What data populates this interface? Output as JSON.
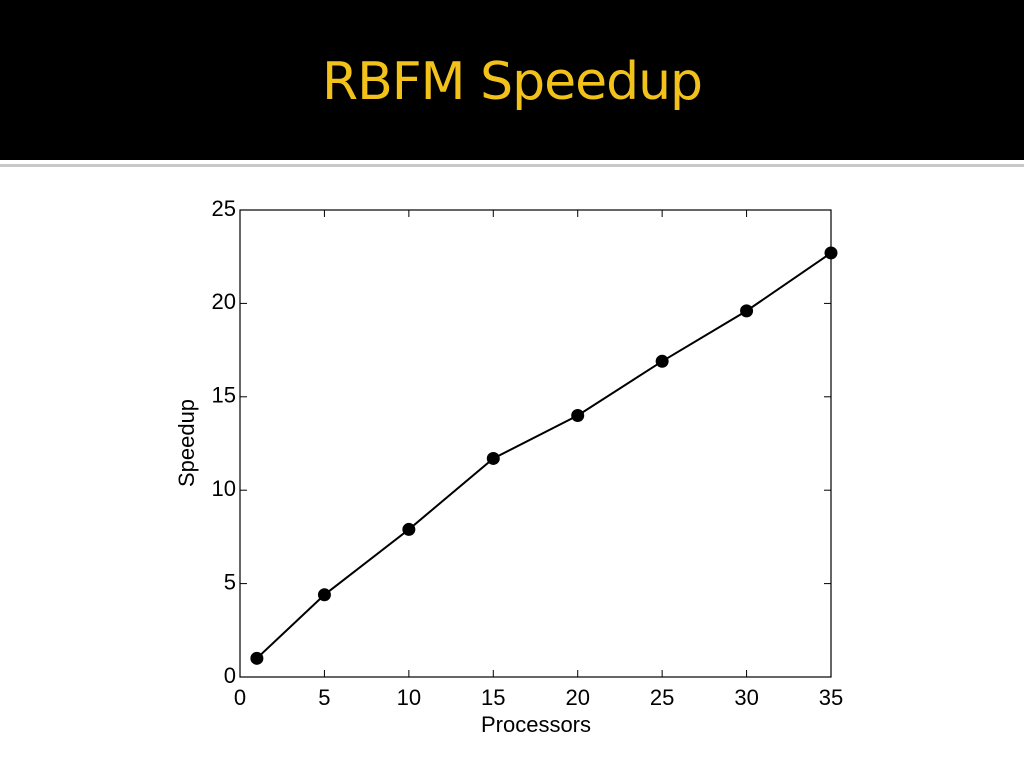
{
  "chart_data": {
    "type": "line",
    "title": "RBFM Speedup",
    "x_label": "Processors",
    "y_label": "Speedup",
    "x": [
      1,
      5,
      10,
      15,
      20,
      25,
      30,
      35
    ],
    "series": [
      {
        "name": "Speedup",
        "color": "#000000",
        "values": [
          1,
          4.4,
          7.9,
          11.7,
          14,
          16.9,
          19.6,
          22.7
        ]
      }
    ],
    "xlim": [
      0,
      35
    ],
    "xticks": [
      0,
      5,
      10,
      15,
      20,
      25,
      30,
      35
    ],
    "ylim": [
      0,
      25
    ],
    "yticks": [
      0,
      5,
      10,
      15,
      20,
      25
    ]
  }
}
